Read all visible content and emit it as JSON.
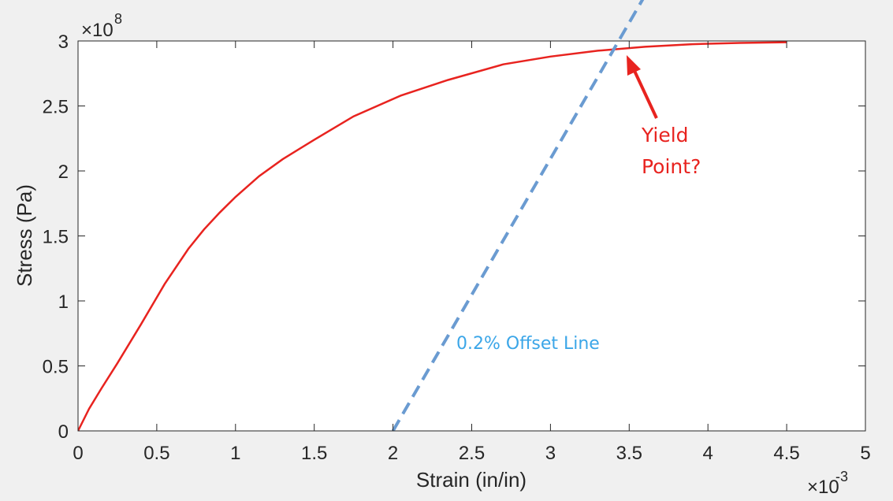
{
  "chart_data": {
    "type": "line",
    "title": "",
    "xlabel": "Strain (in/in)",
    "ylabel": "Stress (Pa)",
    "x_exponent_label": "×10",
    "x_exponent": "-3",
    "y_exponent_label": "×10",
    "y_exponent": "8",
    "xlim": [
      0,
      5
    ],
    "ylim": [
      0,
      3
    ],
    "x_ticks": [
      "0",
      "0.5",
      "1",
      "1.5",
      "2",
      "2.5",
      "3",
      "3.5",
      "4",
      "4.5",
      "5"
    ],
    "y_ticks": [
      "0",
      "0.5",
      "1",
      "1.5",
      "2",
      "2.5",
      "3"
    ],
    "grid": false,
    "series": [
      {
        "color": "#e8231f",
        "style": "solid",
        "x": [
          0,
          0.07,
          0.15,
          0.25,
          0.4,
          0.55,
          0.7,
          0.8,
          0.9,
          1.0,
          1.15,
          1.3,
          1.5,
          1.75,
          2.05,
          2.35,
          2.7,
          3.0,
          3.3,
          3.6,
          3.9,
          4.2,
          4.5
        ],
        "y": [
          0,
          0.17,
          0.33,
          0.52,
          0.82,
          1.13,
          1.4,
          1.55,
          1.68,
          1.8,
          1.96,
          2.09,
          2.24,
          2.42,
          2.58,
          2.7,
          2.82,
          2.88,
          2.925,
          2.955,
          2.975,
          2.985,
          2.99
        ]
      },
      {
        "name": "0.2% Offset Line",
        "color": "#6a9bd1",
        "style": "dashed",
        "x": [
          2.0,
          3.6
        ],
        "y": [
          0,
          3.35
        ]
      }
    ],
    "annotations": [
      {
        "text_lines": [
          "Yield",
          "Point?"
        ],
        "color": "#e8231f",
        "arrow_to": [
          3.48,
          2.9
        ]
      },
      {
        "text": "0.2% Offset Line",
        "color": "#3ba6e8"
      }
    ]
  }
}
